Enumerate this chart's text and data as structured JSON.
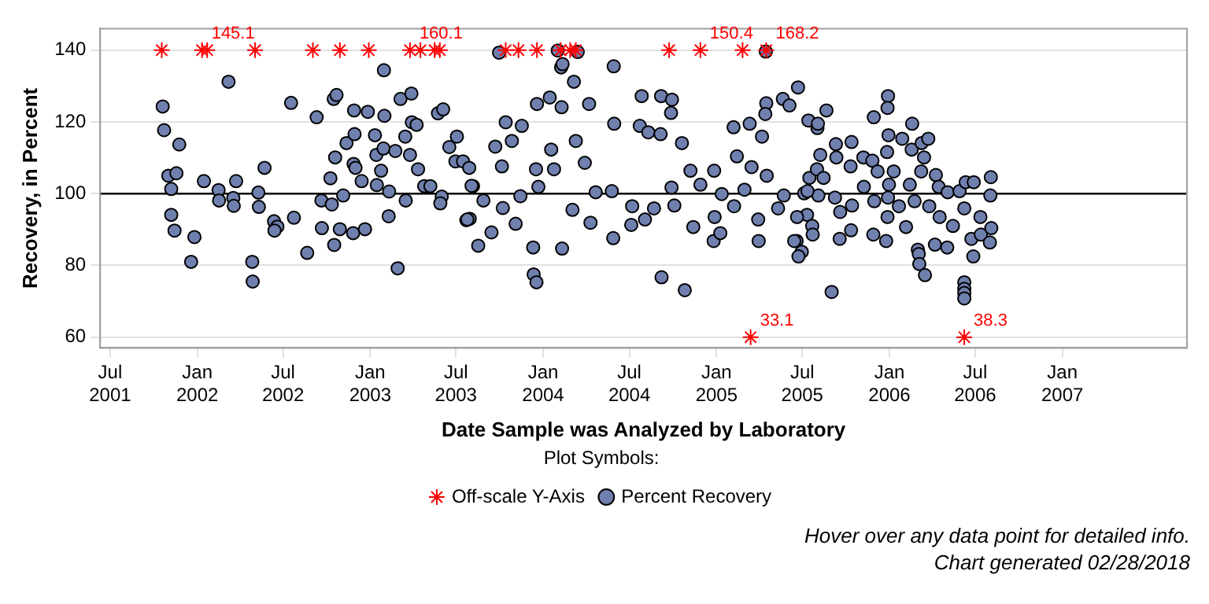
{
  "chart_data": {
    "type": "scatter",
    "xlabel": "Date Sample was Analyzed by Laboratory",
    "ylabel": "Recovery, in Percent",
    "xlim": [
      "2001-06-10",
      "2007-09-21"
    ],
    "ylim": [
      57,
      146
    ],
    "xticks": [
      {
        "value": "2001-07",
        "label": "Jul 2001"
      },
      {
        "value": "2002-01",
        "label": "Jan 2002"
      },
      {
        "value": "2002-07",
        "label": "Jul 2002"
      },
      {
        "value": "2003-01",
        "label": "Jan 2003"
      },
      {
        "value": "2003-07",
        "label": "Jul 2003"
      },
      {
        "value": "2004-01",
        "label": "Jan 2004"
      },
      {
        "value": "2004-07",
        "label": "Jul 2004"
      },
      {
        "value": "2005-01",
        "label": "Jan 2005"
      },
      {
        "value": "2005-07",
        "label": "Jul 2005"
      },
      {
        "value": "2006-01",
        "label": "Jan 2006"
      },
      {
        "value": "2006-07",
        "label": "Jul 2006"
      },
      {
        "value": "2007-01",
        "label": "Jan 2007"
      }
    ],
    "yticks": [
      60,
      80,
      100,
      120,
      140
    ],
    "grid": "y",
    "legend": "bottom",
    "legend_title": "Plot Symbols:",
    "ref_lines": [
      {
        "axis": "y",
        "value": 100,
        "label": null,
        "color": "#000000"
      }
    ],
    "annotations": [
      {
        "text": "145.1",
        "x": "2002-01-11",
        "y": 140
      },
      {
        "text": "160.1",
        "x": "2003-03-26",
        "y": 140
      },
      {
        "text": "150.4",
        "x": "2004-11-28",
        "y": 140
      },
      {
        "text": "33.1",
        "x": "2005-03-14",
        "y": 60
      },
      {
        "text": "168.2",
        "x": "2005-04-16",
        "y": 140
      },
      {
        "text": "38.3",
        "x": "2006-06-08",
        "y": 60
      },
      "Hover over any data point for detailed info.",
      "Chart generated 02/28/2018"
    ],
    "series": [
      {
        "name": "Percent Recovery",
        "marker": "circle",
        "color": "#6f7fae",
        "x": [
          "2001-10-20",
          "2001-10-23",
          "2001-11-24",
          "2001-11-01",
          "2001-11-18",
          "2001-11-07",
          "2001-11-07",
          "2001-11-14",
          "2001-12-26",
          "2001-12-19",
          "2002-01-15",
          "2002-02-15",
          "2002-02-16",
          "2002-03-08",
          "2002-03-24",
          "2002-03-18",
          "2002-03-19",
          "2002-05-23",
          "2002-05-10",
          "2002-05-11",
          "2002-04-27",
          "2002-04-28",
          "2002-06-12",
          "2002-06-19",
          "2002-06-13",
          "2002-07-18",
          "2002-07-24",
          "2002-08-21",
          "2002-09-10",
          "2002-09-20",
          "2002-09-21",
          "2002-10-09",
          "2002-10-16",
          "2002-10-22",
          "2002-10-19",
          "2002-10-12",
          "2002-10-17",
          "2002-10-29",
          "2002-11-05",
          "2002-11-12",
          "2002-11-28",
          "2002-11-29",
          "2002-11-27",
          "2002-12-01",
          "2002-11-26",
          "2002-12-14",
          "2002-12-21",
          "2002-12-27",
          "2003-01-11",
          "2003-01-14",
          "2003-01-15",
          "2003-01-24",
          "2003-01-30",
          "2003-01-31",
          "2003-01-29",
          "2003-02-10",
          "2003-02-09",
          "2003-02-28",
          "2003-02-23",
          "2003-03-06",
          "2003-03-16",
          "2003-03-17",
          "2003-03-26",
          "2003-03-29",
          "2003-03-30",
          "2003-04-09",
          "2003-04-12",
          "2003-04-25",
          "2003-05-08",
          "2003-05-24",
          "2003-06-04",
          "2003-06-01",
          "2003-05-29",
          "2003-06-17",
          "2003-06-30",
          "2003-07-03",
          "2003-07-16",
          "2003-07-29",
          "2003-07-23",
          "2003-07-30",
          "2003-08-06",
          "2003-09-30",
          "2004-02-01",
          "2004-03-14",
          "2004-02-08",
          "2004-02-11",
          "2004-03-06",
          "2004-05-29",
          "2004-07-27",
          "2004-09-06",
          "2004-09-29",
          "2004-09-27",
          "2005-04-15",
          "2005-04-16",
          "2005-04-14",
          "2005-06-22",
          "2005-05-21",
          "2005-06-04",
          "2003-12-19",
          "2004-01-15",
          "2004-02-09",
          "2004-04-07",
          "2003-10-14",
          "2003-11-17",
          "2003-10-27",
          "2003-10-06",
          "2003-09-22",
          "2003-08-03",
          "2003-08-28",
          "2003-07-25",
          "2003-08-17",
          "2003-09-14",
          "2003-10-08",
          "2003-11-04",
          "2003-11-14",
          "2003-12-11",
          "2003-12-12",
          "2003-12-18",
          "2003-12-17",
          "2003-12-22",
          "2004-01-18",
          "2004-01-24",
          "2004-02-10",
          "2004-03-03",
          "2004-03-10",
          "2004-03-29",
          "2004-04-10",
          "2004-04-21",
          "2004-05-25",
          "2004-05-28",
          "2004-05-30",
          "2004-07-07",
          "2004-07-05",
          "2004-07-23",
          "2004-08-10",
          "2004-08-03",
          "2004-08-22",
          "2004-09-05",
          "2004-09-07",
          "2004-09-28",
          "2004-10-04",
          "2004-10-20",
          "2004-10-26",
          "2004-11-13",
          "2004-11-07",
          "2004-11-28",
          "2004-12-27",
          "2004-12-28",
          "2004-12-26",
          "2005-01-12",
          "2005-01-09",
          "2005-02-06",
          "2005-02-07",
          "2005-02-13",
          "2005-03-01",
          "2005-03-12",
          "2005-03-16",
          "2005-03-30",
          "2005-03-31",
          "2005-04-07",
          "2005-04-17",
          "2005-05-11",
          "2005-05-23",
          "2005-06-19",
          "2005-06-30",
          "2005-07-14",
          "2005-07-16",
          "2005-07-11",
          "2005-07-05",
          "2005-08-02",
          "2005-08-03",
          "2005-08-21",
          "2005-08-08",
          "2005-08-01",
          "2005-08-15",
          "2005-08-04",
          "2005-07-22",
          "2005-07-23",
          "2005-09-01",
          "2005-09-08",
          "2005-09-10",
          "2005-09-11",
          "2005-09-18",
          "2005-09-19",
          "2005-10-11",
          "2005-10-13",
          "2005-10-14",
          "2005-10-12",
          "2005-11-07",
          "2005-11-08",
          "2005-11-29",
          "2005-11-26",
          "2005-11-30",
          "2005-11-28",
          "2005-12-07",
          "2005-12-25",
          "2005-12-29",
          "2005-12-28",
          "2005-12-30",
          "2005-12-27",
          "2005-12-31",
          "2005-12-29",
          "2005-12-28",
          "2006-01-10",
          "2006-01-28",
          "2006-01-21",
          "2006-02-05",
          "2006-02-13",
          "2006-02-18",
          "2006-02-17",
          "2006-02-23",
          "2006-03-02",
          "2006-03-04",
          "2006-03-05",
          "2006-03-17",
          "2006-03-10",
          "2006-03-15",
          "2006-03-24",
          "2006-03-09",
          "2006-03-26",
          "2006-04-07",
          "2006-04-09",
          "2006-04-15",
          "2006-04-17",
          "2006-05-03",
          "2006-05-04",
          "2006-05-15",
          "2006-05-29",
          "2006-06-08",
          "2006-06-08",
          "2006-06-08",
          "2006-06-08",
          "2006-06-08",
          "2006-06-11",
          "2006-06-28",
          "2006-06-27",
          "2006-06-23",
          "2006-07-12",
          "2006-07-13",
          "2006-08-01",
          "2006-08-04",
          "2006-08-03",
          "2006-08-02",
          "2005-06-20",
          "2005-06-23",
          "2005-06-14",
          "2005-07-12"
        ],
        "values": [
          124.3,
          117.7,
          113.7,
          105.0,
          105.7,
          101.3,
          94.1,
          89.7,
          87.9,
          81.0,
          103.5,
          101.0,
          98.1,
          131.2,
          103.5,
          98.8,
          96.6,
          107.2,
          100.3,
          96.3,
          81.0,
          75.5,
          92.3,
          90.8,
          89.7,
          125.3,
          93.3,
          83.5,
          121.3,
          98.1,
          90.4,
          104.3,
          126.4,
          127.5,
          110.1,
          97.0,
          85.7,
          90.1,
          99.5,
          114.1,
          123.2,
          116.6,
          108.3,
          107.2,
          89.0,
          103.5,
          90.1,
          122.8,
          116.3,
          110.8,
          102.4,
          106.4,
          134.4,
          121.7,
          112.6,
          100.6,
          93.7,
          79.2,
          111.9,
          126.4,
          115.9,
          98.1,
          110.8,
          127.9,
          119.9,
          119.2,
          106.8,
          102.1,
          102.1,
          122.4,
          123.5,
          99.2,
          97.3,
          113.0,
          109.0,
          115.9,
          109.0,
          107.2,
          92.6,
          93.0,
          102.1,
          139.3,
          139.9,
          139.5,
          135.2,
          136.1,
          131.2,
          135.5,
          127.2,
          127.2,
          126.2,
          122.5,
          139.6,
          125.2,
          122.2,
          129.6,
          126.4,
          124.6,
          125.0,
          126.8,
          124.1,
          125.0,
          119.9,
          118.9,
          114.7,
          107.6,
          113.1,
          102.2,
          98.1,
          92.8,
          85.5,
          89.2,
          96.0,
          91.6,
          99.3,
          85.0,
          77.5,
          75.3,
          106.8,
          101.9,
          112.3,
          106.8,
          84.7,
          95.5,
          114.7,
          108.6,
          91.9,
          100.4,
          100.7,
          87.6,
          119.5,
          96.5,
          91.3,
          118.9,
          117.1,
          92.8,
          95.9,
          116.6,
          76.7,
          101.7,
          96.7,
          114.1,
          73.1,
          90.7,
          106.4,
          102.5,
          106.4,
          93.5,
          86.8,
          99.9,
          89.0,
          118.5,
          96.5,
          110.4,
          101.1,
          119.5,
          107.4,
          92.8,
          86.8,
          115.9,
          105.0,
          95.9,
          99.5,
          86.8,
          83.8,
          120.4,
          104.4,
          94.1,
          100.1,
          118.3,
          119.5,
          123.2,
          110.8,
          106.8,
          104.4,
          99.5,
          91.0,
          88.6,
          72.6,
          98.9,
          113.8,
          110.1,
          87.4,
          94.9,
          107.6,
          114.4,
          96.7,
          89.8,
          110.1,
          101.9,
          121.3,
          109.2,
          97.9,
          88.6,
          106.2,
          86.8,
          127.2,
          123.9,
          116.3,
          111.6,
          102.5,
          98.9,
          93.5,
          106.2,
          115.3,
          96.5,
          90.7,
          102.5,
          119.5,
          112.3,
          97.9,
          84.4,
          83.2,
          80.4,
          77.3,
          114.1,
          110.1,
          115.3,
          106.2,
          96.5,
          85.8,
          105.2,
          101.9,
          93.5,
          85.0,
          100.4,
          91.0,
          100.7,
          75.3,
          73.5,
          72.3,
          70.8,
          95.9,
          103.2,
          103.2,
          82.5,
          87.4,
          93.5,
          88.6,
          86.4,
          90.4,
          104.6,
          99.5,
          93.5,
          82.5,
          86.8,
          100.7
        ]
      },
      {
        "name": "Off-scale Y-Axis",
        "marker": "cross",
        "color": "#ff0000",
        "x": [
          "2001-10-18",
          "2002-01-11",
          "2002-01-22",
          "2002-05-03",
          "2002-09-02",
          "2002-10-29",
          "2002-12-29",
          "2003-03-26",
          "2003-04-17",
          "2003-05-17",
          "2003-05-28",
          "2003-10-14",
          "2003-11-10",
          "2003-12-19",
          "2004-02-07",
          "2004-02-27",
          "2004-03-10",
          "2004-09-23",
          "2004-11-28",
          "2005-02-25",
          "2005-03-14",
          "2005-04-16",
          "2006-06-08"
        ],
        "values": [
          140,
          140,
          140,
          140,
          140,
          140,
          140,
          140,
          140,
          140,
          140,
          140,
          140,
          140,
          140,
          140,
          140,
          140,
          140,
          140,
          60,
          140,
          60
        ]
      }
    ]
  }
}
